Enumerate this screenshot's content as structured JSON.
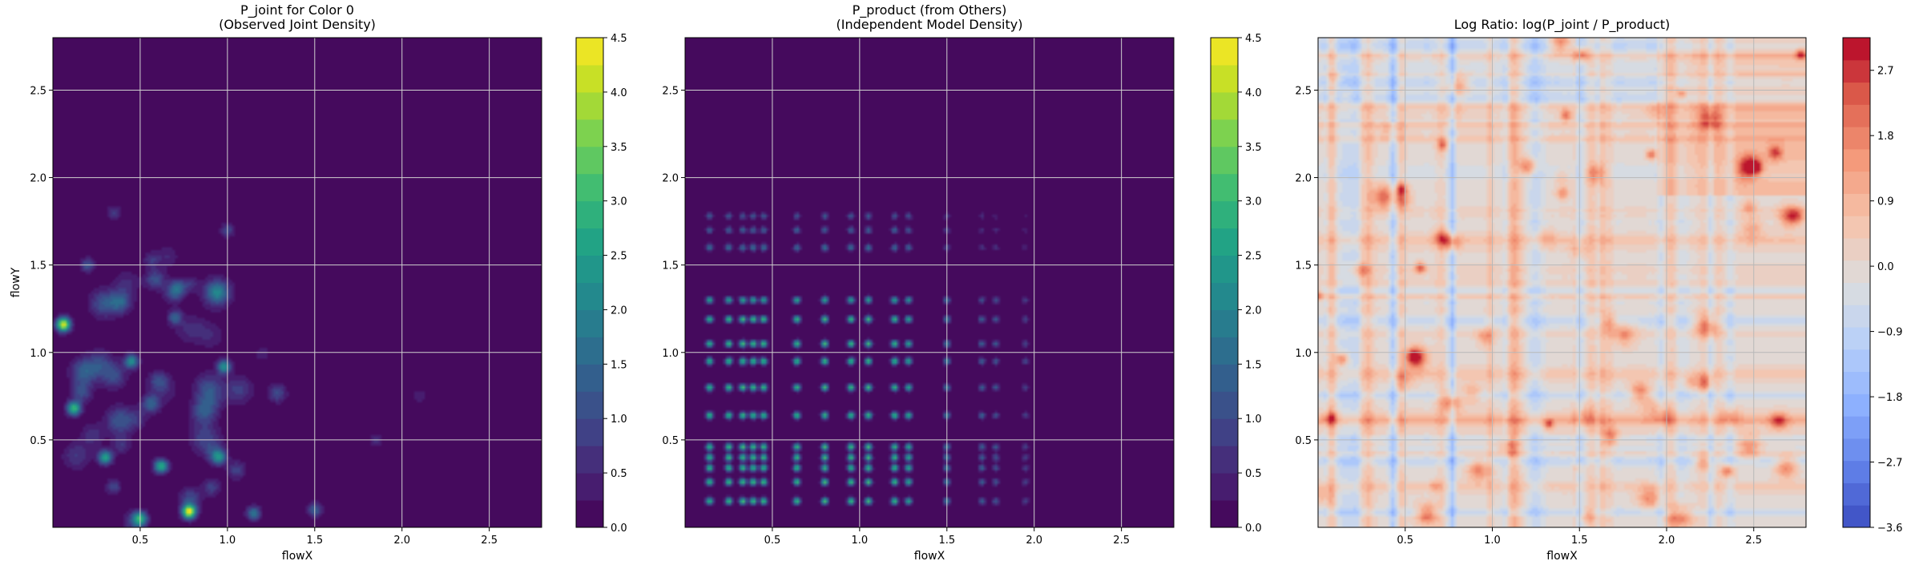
{
  "chart_data": [
    {
      "type": "heatmap",
      "title_lines": [
        "P_joint for Color 0",
        "(Observed Joint Density)"
      ],
      "xlabel": "flowX",
      "ylabel": "flowY",
      "xlim": [
        0.0,
        2.8
      ],
      "ylim": [
        0.0,
        2.8
      ],
      "xticks": [
        "0.5",
        "1.0",
        "1.5",
        "2.0",
        "2.5"
      ],
      "yticks": [
        "0.5",
        "1.0",
        "1.5",
        "2.0",
        "2.5"
      ],
      "grid": true,
      "colormap": "viridis",
      "colorbar": {
        "min": 0.0,
        "max": 4.5,
        "levels": 18,
        "ticks": [
          "0.0",
          "0.5",
          "1.0",
          "1.5",
          "2.0",
          "2.5",
          "3.0",
          "3.5",
          "4.0",
          "4.5"
        ]
      },
      "peaks": [
        {
          "x": 0.06,
          "y": 1.16,
          "value": 4.3
        },
        {
          "x": 0.78,
          "y": 0.09,
          "value": 4.4
        },
        {
          "x": 0.12,
          "y": 0.68,
          "value": 3.0
        },
        {
          "x": 0.45,
          "y": 0.95,
          "value": 2.2
        },
        {
          "x": 0.98,
          "y": 0.92,
          "value": 2.2
        },
        {
          "x": 0.3,
          "y": 0.4,
          "value": 2.6
        },
        {
          "x": 0.62,
          "y": 0.35,
          "value": 2.8
        },
        {
          "x": 0.5,
          "y": 0.05,
          "value": 2.5
        },
        {
          "x": 1.15,
          "y": 0.08,
          "value": 1.8
        },
        {
          "x": 1.5,
          "y": 0.1,
          "value": 1.4
        },
        {
          "x": 0.95,
          "y": 0.4,
          "value": 2.0
        },
        {
          "x": 0.2,
          "y": 1.5,
          "value": 1.2
        },
        {
          "x": 0.7,
          "y": 1.2,
          "value": 1.4
        },
        {
          "x": 1.0,
          "y": 1.7,
          "value": 1.0
        },
        {
          "x": 1.85,
          "y": 0.5,
          "value": 0.6
        },
        {
          "x": 2.1,
          "y": 0.75,
          "value": 0.5
        },
        {
          "x": 0.35,
          "y": 1.8,
          "value": 0.8
        }
      ]
    },
    {
      "type": "heatmap",
      "title_lines": [
        "P_product (from Others)",
        "(Independent Model Density)"
      ],
      "xlabel": "flowX",
      "ylabel": "",
      "xlim": [
        0.0,
        2.8
      ],
      "ylim": [
        0.0,
        2.8
      ],
      "xticks": [
        "0.5",
        "1.0",
        "1.5",
        "2.0",
        "2.5"
      ],
      "yticks": [
        "0.5",
        "1.0",
        "1.5",
        "2.0",
        "2.5"
      ],
      "grid": true,
      "colormap": "viridis",
      "colorbar": {
        "min": 0.0,
        "max": 4.5,
        "levels": 18,
        "ticks": [
          "0.0",
          "0.5",
          "1.0",
          "1.5",
          "2.0",
          "2.5",
          "3.0",
          "3.5",
          "4.0",
          "4.5"
        ]
      },
      "x_marginal_peaks": [
        0.14,
        0.25,
        0.33,
        0.39,
        0.45,
        0.64,
        0.8,
        0.95,
        1.05,
        1.2,
        1.28,
        1.5,
        1.7,
        1.78,
        1.95
      ],
      "y_marginal_peaks": [
        0.15,
        0.26,
        0.34,
        0.4,
        0.46,
        0.64,
        0.8,
        0.95,
        1.05,
        1.19,
        1.3,
        1.6,
        1.7,
        1.78
      ],
      "peak_value": 3.2
    },
    {
      "type": "heatmap",
      "title": "Log Ratio: log(P_joint / P_product)",
      "xlabel": "flowX",
      "ylabel": "",
      "xlim": [
        0.0,
        2.8
      ],
      "ylim": [
        0.0,
        2.8
      ],
      "xticks": [
        "0.5",
        "1.0",
        "1.5",
        "2.0",
        "2.5"
      ],
      "yticks": [
        "0.5",
        "1.0",
        "1.5",
        "2.0",
        "2.5"
      ],
      "grid": true,
      "colormap": "coolwarm",
      "colorbar": {
        "min": -3.6,
        "max": 3.15,
        "levels": 22,
        "ticks": [
          "−3.6",
          "−2.7",
          "−1.8",
          "−0.9",
          "0.0",
          "0.9",
          "1.8",
          "2.7"
        ]
      },
      "value_range": [
        -3.6,
        3.0
      ]
    }
  ]
}
